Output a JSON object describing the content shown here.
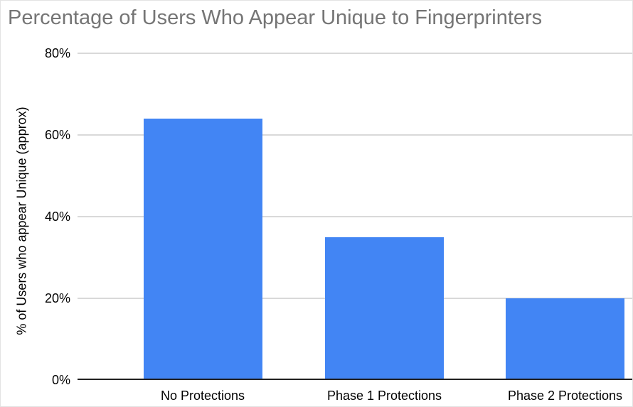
{
  "chart_data": {
    "type": "bar",
    "title": "Percentage of Users Who Appear Unique to Fingerprinters",
    "categories": [
      "No Protections",
      "Phase 1 Protections",
      "Phase 2 Protections"
    ],
    "values": [
      64,
      35,
      20
    ],
    "xlabel": "",
    "ylabel": "% of Users who appear Unique (approx)",
    "ylim": [
      0,
      80
    ],
    "yticks": [
      0,
      20,
      40,
      60,
      80
    ],
    "ytick_labels": [
      "0%",
      "20%",
      "40%",
      "60%",
      "80%"
    ],
    "grid": true,
    "legend": false,
    "bar_color": "#4285f4",
    "title_color": "#757575",
    "gridline_color": "#d9d9d9",
    "axis_line_color": "#212121",
    "label_color": "#000000"
  }
}
